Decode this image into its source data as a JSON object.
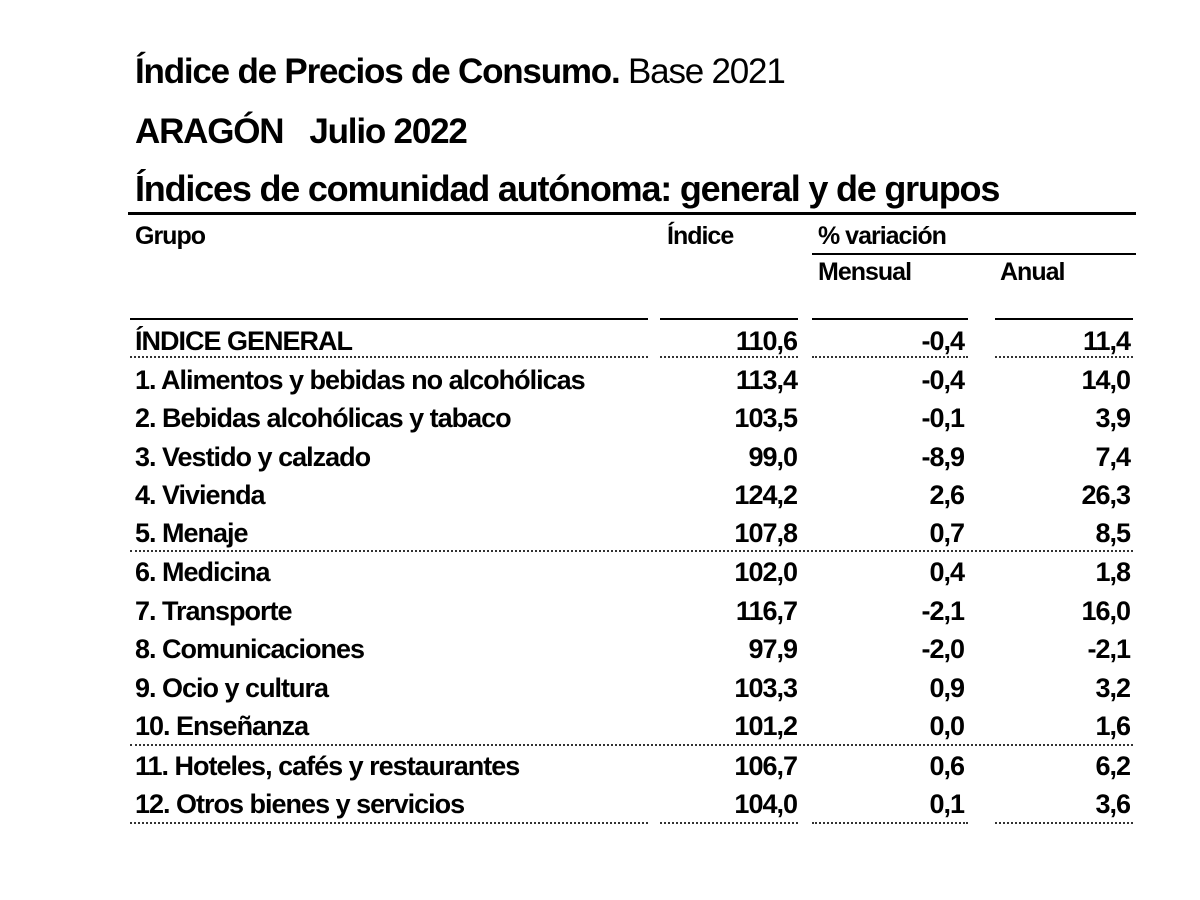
{
  "header": {
    "title_bold": "Índice de Precios de Consumo.",
    "title_normal": "Base 2021",
    "region": "ARAGÓN",
    "period": "Julio 2022",
    "subtitle": "Índices de comunidad autónoma: general y de grupos"
  },
  "table": {
    "columns": {
      "grupo": "Grupo",
      "indice": "Índice",
      "variacion": "% variación",
      "mensual": "Mensual",
      "anual": "Anual"
    },
    "rows": [
      {
        "grupo": "ÍNDICE GENERAL",
        "indice": "110,6",
        "mensual": "-0,4",
        "anual": "11,4"
      },
      {
        "grupo": "1. Alimentos y bebidas no alcohólicas",
        "indice": "113,4",
        "mensual": "-0,4",
        "anual": "14,0"
      },
      {
        "grupo": "2. Bebidas alcohólicas y tabaco",
        "indice": "103,5",
        "mensual": "-0,1",
        "anual": "3,9"
      },
      {
        "grupo": "3. Vestido y calzado",
        "indice": "99,0",
        "mensual": "-8,9",
        "anual": "7,4"
      },
      {
        "grupo": "4. Vivienda",
        "indice": "124,2",
        "mensual": "2,6",
        "anual": "26,3"
      },
      {
        "grupo": "5. Menaje",
        "indice": "107,8",
        "mensual": "0,7",
        "anual": "8,5"
      },
      {
        "grupo": "6. Medicina",
        "indice": "102,0",
        "mensual": "0,4",
        "anual": "1,8"
      },
      {
        "grupo": "7. Transporte",
        "indice": "116,7",
        "mensual": "-2,1",
        "anual": "16,0"
      },
      {
        "grupo": "8. Comunicaciones",
        "indice": "97,9",
        "mensual": "-2,0",
        "anual": "-2,1"
      },
      {
        "grupo": "9. Ocio y cultura",
        "indice": "103,3",
        "mensual": "0,9",
        "anual": "3,2"
      },
      {
        "grupo": "10. Enseñanza",
        "indice": "101,2",
        "mensual": "0,0",
        "anual": "1,6"
      },
      {
        "grupo": "11. Hoteles, cafés y restaurantes",
        "indice": "106,7",
        "mensual": "0,6",
        "anual": "6,2"
      },
      {
        "grupo": "12. Otros bienes y servicios",
        "indice": "104,0",
        "mensual": "0,1",
        "anual": "3,6"
      }
    ]
  }
}
